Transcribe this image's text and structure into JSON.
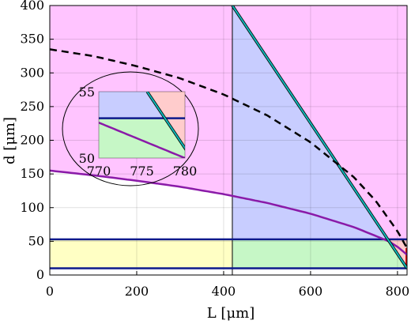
{
  "chart_data": {
    "type": "area",
    "xlabel": "L [μm]",
    "ylabel": "d [μm]",
    "xlim": [
      0,
      822
    ],
    "ylim": [
      0,
      400
    ],
    "xticks": [
      0,
      200,
      400,
      600,
      800
    ],
    "yticks": [
      0,
      50,
      100,
      150,
      200,
      250,
      300,
      350,
      400
    ],
    "grid": true,
    "colors": {
      "magenta_region": "#ffc4ff",
      "blue_region": "#c8cdff",
      "cyan_region": "#c4ffff",
      "green_region": "#c6f7c6",
      "yellow_region": "#ffffc4",
      "pink_region": "#ffcccc",
      "navy_line": "#0d1a8c",
      "purple_line": "#8a1aa8",
      "cyan_line": "#10b8b8",
      "dashed_line": "#000000",
      "red_edge": "#e01010"
    },
    "series": [
      {
        "style": "dashed",
        "x": [
          0,
          100,
          200,
          300,
          400,
          500,
          600,
          700,
          750,
          800,
          822
        ],
        "y": [
          335,
          325,
          310,
          292,
          268,
          237,
          197,
          145,
          110,
          65,
          40
        ]
      },
      {
        "style": "solid-purple",
        "x": [
          0,
          100,
          200,
          300,
          400,
          500,
          600,
          700,
          750,
          780,
          800,
          822
        ],
        "y": [
          155,
          148,
          140,
          131,
          120,
          107,
          91,
          71,
          58,
          50,
          42,
          30
        ]
      },
      {
        "style": "solid-cyan",
        "x": [
          420,
          822
        ],
        "y": [
          400,
          10
        ]
      },
      {
        "style": "solid-navy-upper",
        "x": [
          0,
          822
        ],
        "y": [
          53,
          53
        ]
      },
      {
        "style": "solid-navy-lower",
        "x": [
          0,
          822
        ],
        "y": [
          10,
          10
        ]
      },
      {
        "style": "vertical-divider",
        "x": [
          420,
          420
        ],
        "y": [
          0,
          400
        ]
      }
    ],
    "inset": {
      "xlim": [
        770,
        780
      ],
      "ylim": [
        50,
        55
      ],
      "xticks": [
        770,
        775,
        780
      ],
      "yticks": [
        50,
        55
      ]
    }
  }
}
